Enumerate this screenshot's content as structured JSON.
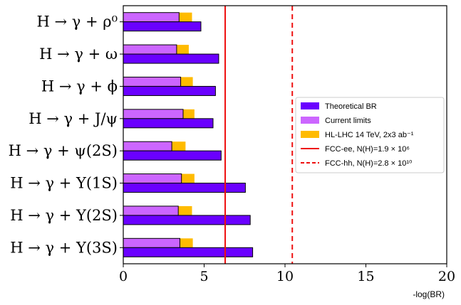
{
  "chart_data": {
    "type": "bar",
    "orientation": "horizontal",
    "categories": [
      "H → γ + ρ⁰",
      "H → γ + ω",
      "H → γ + ϕ",
      "H → γ + J/ψ",
      "H → γ + ψ(2S)",
      "H → γ + Υ(1S)",
      "H → γ + Υ(2S)",
      "H → γ + Υ(3S)"
    ],
    "series": [
      {
        "name": "Theoretical BR",
        "color": "#6a00ff",
        "values": [
          4.8,
          5.9,
          5.7,
          5.55,
          6.05,
          7.55,
          7.85,
          8.0
        ]
      },
      {
        "name": "Current limits",
        "color": "#cc66ff",
        "values": [
          3.45,
          3.3,
          3.55,
          3.7,
          3.0,
          3.6,
          3.4,
          3.5
        ]
      },
      {
        "name": "HL-LHC 14 TeV, 2x3 ab⁻¹",
        "color": "#ffbb00",
        "values": [
          4.25,
          4.05,
          4.3,
          4.4,
          3.85,
          4.4,
          4.25,
          4.3
        ]
      }
    ],
    "reference_lines": [
      {
        "name": "FCC-ee, N(H)=1.9 × 10⁶",
        "x": 6.3,
        "color": "#ee1111",
        "style": "solid"
      },
      {
        "name": "FCC-hh, N(H)=2.8 × 10¹⁰",
        "x": 10.45,
        "color": "#ee1111",
        "style": "dashed"
      }
    ],
    "xlabel": "-log(BR)",
    "ylabel": "",
    "title": "",
    "xlim": [
      0,
      20
    ],
    "xticks": [
      "0",
      "5",
      "10",
      "15",
      "20"
    ],
    "grid": false,
    "legend_position": "right"
  }
}
